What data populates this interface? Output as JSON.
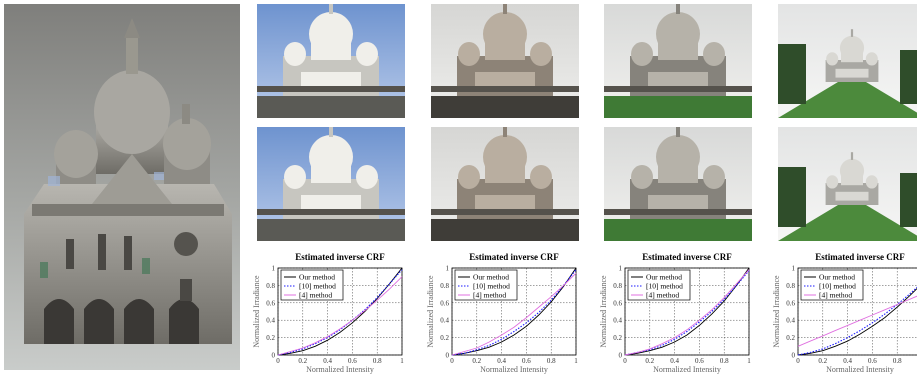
{
  "figure": {
    "model": {
      "icon": "3d-reconstructed-basilica"
    },
    "photo_rows": [
      {
        "row": "input-photos",
        "icons": [
          "basilica-photo-blue-sky",
          "basilica-photo-overcast-dark",
          "basilica-photo-overcast-lawn",
          "basilica-photo-distant-lawn"
        ]
      },
      {
        "row": "recolored-photos",
        "icons": [
          "basilica-photo-blue-sky",
          "basilica-photo-overcast-dark",
          "basilica-photo-overcast-lawn",
          "basilica-photo-distant-lawn"
        ]
      }
    ]
  },
  "chart_data": [
    {
      "type": "line",
      "title": "Estimated inverse CRF",
      "xlabel": "Normalized Intensity",
      "ylabel": "Normalized Irradiance",
      "xlim": [
        0,
        1
      ],
      "ylim": [
        0,
        1
      ],
      "xticks": [
        "0",
        "0.2",
        "0.4",
        "0.6",
        "0.8",
        "1"
      ],
      "yticks": [
        "0",
        "0.2",
        "0.4",
        "0.6",
        "0.8",
        "1"
      ],
      "grid": true,
      "legend": "top-left",
      "x": [
        0,
        0.1,
        0.2,
        0.3,
        0.4,
        0.5,
        0.6,
        0.7,
        0.8,
        0.9,
        1.0
      ],
      "series": [
        {
          "name": "Our method",
          "color": "#000000",
          "style": "solid",
          "values": [
            0,
            0.02,
            0.05,
            0.1,
            0.17,
            0.26,
            0.37,
            0.5,
            0.65,
            0.82,
            1.0
          ]
        },
        {
          "name": "[10] method",
          "color": "#1a1aff",
          "style": "dotted",
          "values": [
            0,
            0.03,
            0.07,
            0.13,
            0.2,
            0.29,
            0.4,
            0.52,
            0.66,
            0.82,
            0.98
          ]
        },
        {
          "name": "[4] method",
          "color": "#e070e0",
          "style": "solid",
          "values": [
            0,
            0.04,
            0.08,
            0.14,
            0.21,
            0.3,
            0.4,
            0.51,
            0.63,
            0.76,
            0.9
          ]
        }
      ]
    },
    {
      "type": "line",
      "title": "Estimated inverse CRF",
      "xlabel": "Normalized Intensity",
      "ylabel": "Normalized Irradiance",
      "xlim": [
        0,
        1
      ],
      "ylim": [
        0,
        1
      ],
      "xticks": [
        "0",
        "0.2",
        "0.4",
        "0.6",
        "0.8",
        "1"
      ],
      "yticks": [
        "0",
        "0.2",
        "0.4",
        "0.6",
        "0.8",
        "1"
      ],
      "grid": true,
      "legend": "top-left",
      "x": [
        0,
        0.1,
        0.2,
        0.3,
        0.4,
        0.5,
        0.6,
        0.7,
        0.8,
        0.9,
        1.0
      ],
      "series": [
        {
          "name": "Our method",
          "color": "#000000",
          "style": "solid",
          "values": [
            0,
            0.02,
            0.05,
            0.09,
            0.15,
            0.23,
            0.33,
            0.46,
            0.61,
            0.79,
            1.0
          ]
        },
        {
          "name": "[10] method",
          "color": "#1a1aff",
          "style": "dotted",
          "values": [
            0,
            0.02,
            0.06,
            0.11,
            0.18,
            0.27,
            0.37,
            0.49,
            0.63,
            0.8,
            0.98
          ]
        },
        {
          "name": "[4] method",
          "color": "#e070e0",
          "style": "solid",
          "values": [
            0,
            0.04,
            0.08,
            0.15,
            0.23,
            0.32,
            0.43,
            0.55,
            0.67,
            0.8,
            0.94
          ]
        }
      ]
    },
    {
      "type": "line",
      "title": "Estimated inverse CRF",
      "xlabel": "Normalized Intensity",
      "ylabel": "Normalized Irradiance",
      "xlim": [
        0,
        1
      ],
      "ylim": [
        0,
        1
      ],
      "xticks": [
        "0",
        "0.2",
        "0.4",
        "0.6",
        "0.8",
        "1"
      ],
      "yticks": [
        "0",
        "0.2",
        "0.4",
        "0.6",
        "0.8",
        "1"
      ],
      "grid": true,
      "legend": "top-left",
      "x": [
        0,
        0.1,
        0.2,
        0.3,
        0.4,
        0.5,
        0.6,
        0.7,
        0.8,
        0.9,
        1.0
      ],
      "series": [
        {
          "name": "Our method",
          "color": "#000000",
          "style": "solid",
          "values": [
            0,
            0.02,
            0.05,
            0.09,
            0.15,
            0.23,
            0.34,
            0.47,
            0.62,
            0.8,
            1.0
          ]
        },
        {
          "name": "[10] method",
          "color": "#1a1aff",
          "style": "dotted",
          "values": [
            0,
            0.03,
            0.06,
            0.11,
            0.18,
            0.27,
            0.38,
            0.5,
            0.64,
            0.8,
            0.97
          ]
        },
        {
          "name": "[4] method",
          "color": "#e070e0",
          "style": "solid",
          "values": [
            0,
            0.03,
            0.07,
            0.13,
            0.2,
            0.29,
            0.4,
            0.52,
            0.66,
            0.82,
            0.98
          ]
        }
      ]
    },
    {
      "type": "line",
      "title": "Estimated inverse CRF",
      "xlabel": "Normalized Intensity",
      "ylabel": "Normalized Irradiance",
      "xlim": [
        0,
        1
      ],
      "ylim": [
        0,
        1
      ],
      "xticks": [
        "0",
        "0.2",
        "0.4",
        "0.6",
        "0.8",
        "1"
      ],
      "yticks": [
        "0",
        "0.2",
        "0.4",
        "0.6",
        "0.8",
        "1"
      ],
      "grid": true,
      "legend": "top-left",
      "x": [
        0,
        0.1,
        0.2,
        0.3,
        0.4,
        0.5,
        0.6,
        0.7,
        0.8,
        0.9,
        1.0
      ],
      "series": [
        {
          "name": "Our method",
          "color": "#000000",
          "style": "solid",
          "values": [
            0,
            0.02,
            0.05,
            0.1,
            0.16,
            0.24,
            0.33,
            0.43,
            0.55,
            0.68,
            0.82
          ]
        },
        {
          "name": "[10] method",
          "color": "#1a1aff",
          "style": "dotted",
          "values": [
            0,
            0.03,
            0.07,
            0.13,
            0.2,
            0.28,
            0.37,
            0.47,
            0.58,
            0.7,
            0.83
          ]
        },
        {
          "name": "[4] method",
          "color": "#e070e0",
          "style": "solid",
          "values": [
            0.1,
            0.16,
            0.22,
            0.28,
            0.34,
            0.4,
            0.46,
            0.52,
            0.58,
            0.64,
            0.7
          ]
        }
      ]
    }
  ]
}
